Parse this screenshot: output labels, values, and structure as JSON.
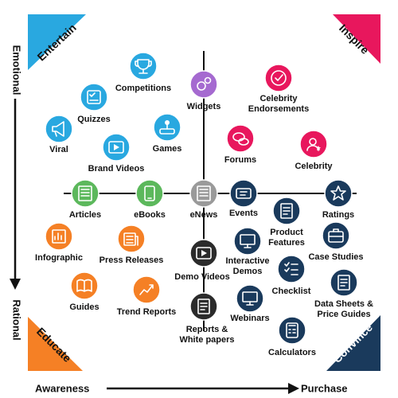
{
  "corners": {
    "entertain": {
      "label": "Entertain",
      "color": "#29a8e0",
      "text_color": "#111111"
    },
    "inspire": {
      "label": "Inspire",
      "color": "#e8175d",
      "text_color": "#111111"
    },
    "educate": {
      "label": "Educate",
      "color": "#f58025",
      "text_color": "#111111"
    },
    "convince": {
      "label": "Convince",
      "color": "#1a3a5c",
      "text_color": "#ffffff"
    }
  },
  "axes": {
    "top": "Emotional",
    "bottom": "Rational",
    "left": "Awareness",
    "right": "Purchase"
  },
  "items": [
    {
      "id": "competitions",
      "label": [
        "Competitions"
      ],
      "color": "#29a8e0",
      "icon": "trophy-icon"
    },
    {
      "id": "quizzes",
      "label": [
        "Quizzes"
      ],
      "color": "#29a8e0",
      "icon": "quiz-icon"
    },
    {
      "id": "viral",
      "label": [
        "Viral"
      ],
      "color": "#29a8e0",
      "icon": "megaphone-icon"
    },
    {
      "id": "brand-videos",
      "label": [
        "Brand Videos"
      ],
      "color": "#29a8e0",
      "icon": "video-icon"
    },
    {
      "id": "games",
      "label": [
        "Games"
      ],
      "color": "#29a8e0",
      "icon": "joystick-icon"
    },
    {
      "id": "widgets",
      "label": [
        "Widgets"
      ],
      "color": "#a56ad0",
      "icon": "gears-icon"
    },
    {
      "id": "celebrity-endorsements",
      "label": [
        "Celebrity",
        "Endorsements"
      ],
      "color": "#e8175d",
      "icon": "badge-check-icon"
    },
    {
      "id": "forums",
      "label": [
        "Forums"
      ],
      "color": "#e8175d",
      "icon": "chat-bubbles-icon"
    },
    {
      "id": "celebrity",
      "label": [
        "Celebrity"
      ],
      "color": "#e8175d",
      "icon": "star-person-icon"
    },
    {
      "id": "articles",
      "label": [
        "Articles"
      ],
      "color": "#5cb85c",
      "icon": "article-icon"
    },
    {
      "id": "ebooks",
      "label": [
        "eBooks"
      ],
      "color": "#5cb85c",
      "icon": "tablet-icon"
    },
    {
      "id": "enews",
      "label": [
        "eNews"
      ],
      "color": "#9a9a9a",
      "icon": "newspaper-icon"
    },
    {
      "id": "events",
      "label": [
        "Events"
      ],
      "color": "#1a3a5c",
      "icon": "ticket-icon"
    },
    {
      "id": "ratings",
      "label": [
        "Ratings"
      ],
      "color": "#1a3a5c",
      "icon": "star-icon"
    },
    {
      "id": "product-features",
      "label": [
        "Product",
        "Features"
      ],
      "color": "#1a3a5c",
      "icon": "product-doc-icon"
    },
    {
      "id": "case-studies",
      "label": [
        "Case Studies"
      ],
      "color": "#1a3a5c",
      "icon": "briefcase-icon"
    },
    {
      "id": "interactive-demos",
      "label": [
        "Interactive",
        "Demos"
      ],
      "color": "#1a3a5c",
      "icon": "screen-icon"
    },
    {
      "id": "checklist",
      "label": [
        "Checklist"
      ],
      "color": "#1a3a5c",
      "icon": "checklist-icon"
    },
    {
      "id": "data-sheets",
      "label": [
        "Data Sheets &",
        "Price Guides"
      ],
      "color": "#1a3a5c",
      "icon": "data-sheet-icon"
    },
    {
      "id": "webinars",
      "label": [
        "Webinars"
      ],
      "color": "#1a3a5c",
      "icon": "webinar-icon"
    },
    {
      "id": "calculators",
      "label": [
        "Calculators"
      ],
      "color": "#1a3a5c",
      "icon": "calculator-icon"
    },
    {
      "id": "demo-videos",
      "label": [
        "Demo Videos"
      ],
      "color": "#2b2b2b",
      "icon": "film-icon"
    },
    {
      "id": "reports",
      "label": [
        "Reports &",
        "White papers"
      ],
      "color": "#2b2b2b",
      "icon": "report-icon"
    },
    {
      "id": "infographic",
      "label": [
        "Infographic"
      ],
      "color": "#f58025",
      "icon": "infographic-icon"
    },
    {
      "id": "press-releases",
      "label": [
        "Press Releases"
      ],
      "color": "#f58025",
      "icon": "press-icon"
    },
    {
      "id": "guides",
      "label": [
        "Guides"
      ],
      "color": "#f58025",
      "icon": "book-icon"
    },
    {
      "id": "trend-reports",
      "label": [
        "Trend Reports"
      ],
      "color": "#f58025",
      "icon": "trend-icon"
    }
  ]
}
